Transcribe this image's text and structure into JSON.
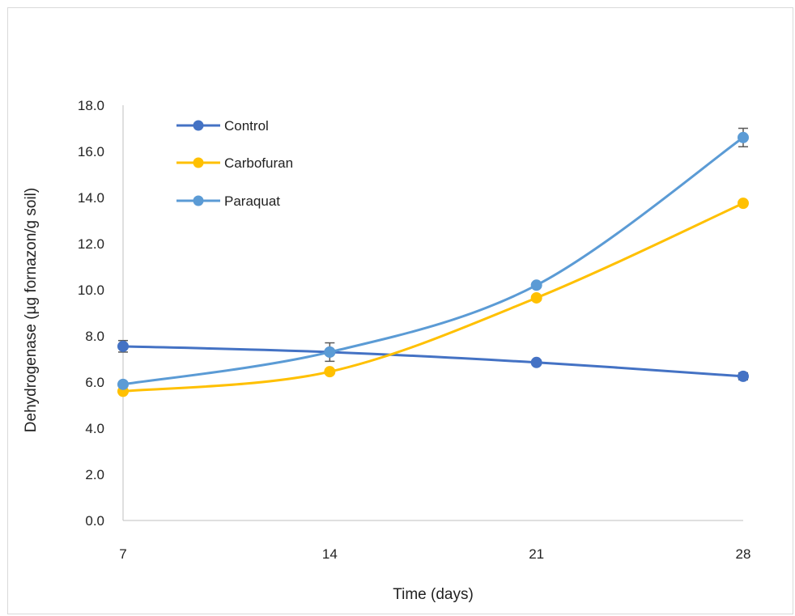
{
  "chart_data": {
    "type": "line",
    "title": "",
    "xlabel": "Time (days)",
    "ylabel": "Dehydrogenase  (µg fornazon/g soil)",
    "x": [
      7,
      14,
      21,
      28
    ],
    "x_tick_labels": [
      "7",
      "14",
      "21",
      "28"
    ],
    "ylim": [
      0,
      18
    ],
    "y_tick_labels": [
      "0.0",
      "2.0",
      "4.0",
      "6.0",
      "8.0",
      "10.0",
      "12.0",
      "14.0",
      "16.0",
      "18.0"
    ],
    "grid": false,
    "legend_position": "top-left",
    "series": [
      {
        "name": "Control",
        "color": "#4472c4",
        "values": [
          7.55,
          7.3,
          6.85,
          6.25
        ],
        "errors": [
          0.25,
          0.1,
          0.1,
          0.15
        ]
      },
      {
        "name": "Carbofuran",
        "color": "#ffc000",
        "values": [
          5.6,
          6.45,
          9.65,
          13.75
        ],
        "errors": [
          0.1,
          0.1,
          0.1,
          0.1
        ]
      },
      {
        "name": "Paraquat",
        "color": "#5b9bd5",
        "values": [
          5.9,
          7.3,
          10.2,
          16.6
        ],
        "errors": [
          0.1,
          0.4,
          0.1,
          0.4
        ]
      }
    ]
  }
}
